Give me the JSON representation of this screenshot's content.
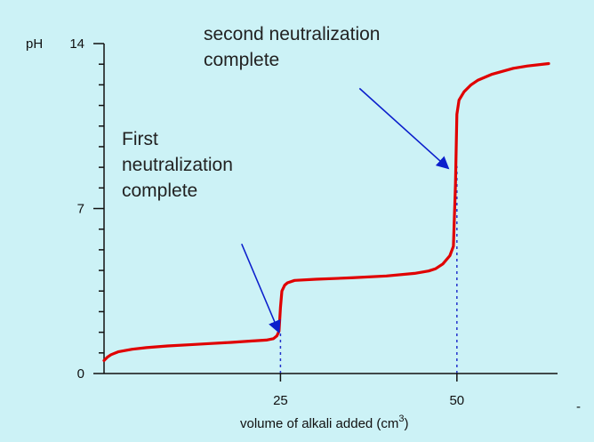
{
  "colors": {
    "background": "#ccf2f6",
    "curve": "#e00000",
    "arrow": "#0b1fcc",
    "guide": "#2233cc",
    "axis": "#111111"
  },
  "chart_data": {
    "type": "line",
    "title": "",
    "xlabel": "volume of alkali added (cm",
    "xlabel_superscript": "3",
    "xlabel_suffix": ")",
    "ylabel": "pH",
    "xlim": [
      0,
      63
    ],
    "ylim": [
      0,
      14
    ],
    "x_ticks": [
      {
        "value": 25,
        "label": "25"
      },
      {
        "value": 50,
        "label": "50"
      }
    ],
    "y_ticks": [
      {
        "value": 0,
        "label": "0"
      },
      {
        "value": 7,
        "label": "7"
      },
      {
        "value": 14,
        "label": "14"
      }
    ],
    "y_minor_ticks": [
      0.875,
      1.75,
      2.625,
      3.5,
      4.375,
      5.25,
      6.125,
      7.875,
      8.75,
      9.625,
      10.5,
      11.375,
      12.25,
      13.125
    ],
    "grid": false,
    "series": [
      {
        "name": "",
        "x": [
          0,
          0.5,
          1,
          2,
          4,
          6,
          9,
          12,
          15,
          18,
          21,
          23,
          24,
          24.5,
          24.8,
          25,
          25.2,
          25.6,
          26,
          27,
          30,
          35,
          40,
          44,
          46,
          47,
          48,
          49,
          49.5,
          49.8,
          50,
          50.3,
          51,
          52,
          53,
          55,
          58,
          60,
          63
        ],
        "y": [
          0.55,
          0.7,
          0.8,
          0.92,
          1.03,
          1.1,
          1.17,
          1.22,
          1.27,
          1.32,
          1.38,
          1.42,
          1.48,
          1.6,
          1.8,
          2.8,
          3.5,
          3.75,
          3.85,
          3.95,
          4.0,
          4.06,
          4.14,
          4.25,
          4.35,
          4.45,
          4.65,
          5.0,
          5.4,
          8.0,
          11.0,
          11.6,
          11.95,
          12.25,
          12.45,
          12.7,
          12.95,
          13.05,
          13.15
        ]
      }
    ],
    "annotations": [
      {
        "lines": [
          "First",
          "neutralization",
          "complete"
        ],
        "arrow_to": {
          "x": 24.8,
          "y": 1.75
        },
        "arrow_from": {
          "x": 19.5,
          "y": 5.5
        }
      },
      {
        "lines": [
          "second neutralization",
          "complete"
        ],
        "arrow_to": {
          "x": 48.8,
          "y": 8.7
        },
        "arrow_from": {
          "x": 36.2,
          "y": 12.1
        }
      }
    ],
    "guides": [
      {
        "x": 25,
        "y_from": 0,
        "y_to": 1.8
      },
      {
        "x": 50,
        "y_from": 0,
        "y_to": 8.8
      }
    ]
  },
  "decor": {
    "corner_mark": "-"
  }
}
